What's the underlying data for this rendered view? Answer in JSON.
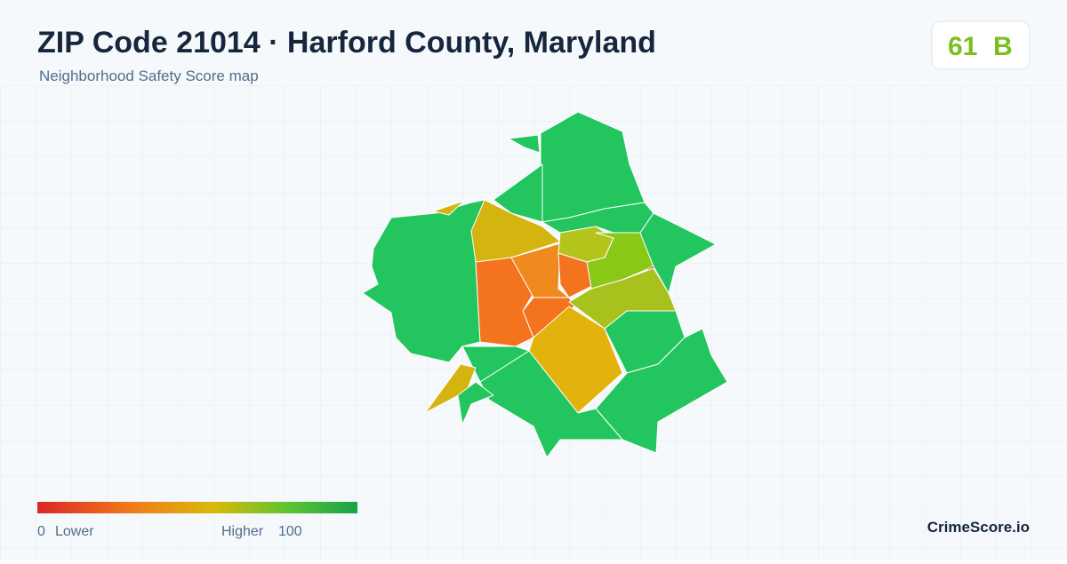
{
  "header": {
    "title": "ZIP Code 21014 · Harford County, Maryland",
    "subtitle": "Neighborhood Safety Score map"
  },
  "badge": {
    "score": "61",
    "grade": "B"
  },
  "legend": {
    "min": "0",
    "min_label": "Lower",
    "max_label": "Higher",
    "max": "100"
  },
  "brand": "CrimeScore.io"
}
